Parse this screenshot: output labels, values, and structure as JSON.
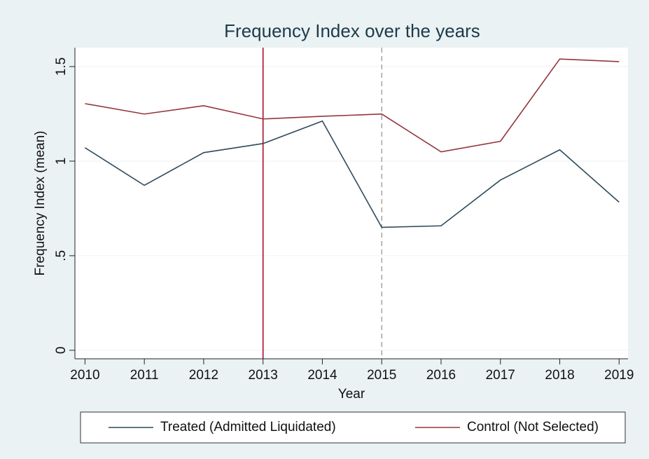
{
  "chart_data": {
    "type": "line",
    "title": "Frequency Index over the years",
    "xlabel": "Year",
    "ylabel": "Frequency Index (mean)",
    "x": [
      2010,
      2011,
      2012,
      2013,
      2014,
      2015,
      2016,
      2017,
      2018,
      2019
    ],
    "series": [
      {
        "name": "Treated (Admitted Liquidated)",
        "color": "#2f4b5a",
        "values": [
          1.071,
          0.872,
          1.045,
          1.093,
          1.212,
          0.65,
          0.658,
          0.9,
          1.06,
          0.783
        ]
      },
      {
        "name": "Control (Not Selected)",
        "color": "#93353d",
        "values": [
          1.304,
          1.249,
          1.293,
          1.223,
          1.237,
          1.249,
          1.049,
          1.105,
          1.54,
          1.526
        ]
      }
    ],
    "xlim": [
      2009.83,
      2019.15
    ],
    "xticks": [
      2010,
      2011,
      2012,
      2013,
      2014,
      2015,
      2016,
      2017,
      2018,
      2019
    ],
    "ylim": [
      -0.045,
      1.6
    ],
    "yticks": [
      0,
      {
        "value": 0.5,
        "label": ".5"
      },
      1,
      1.5
    ],
    "grid": true,
    "vlines": [
      {
        "x": 2013,
        "color": "#a3001c",
        "style": "solid"
      },
      {
        "x": 2015,
        "color": "#777777",
        "style": "dashed"
      }
    ],
    "legend": "bottom"
  }
}
